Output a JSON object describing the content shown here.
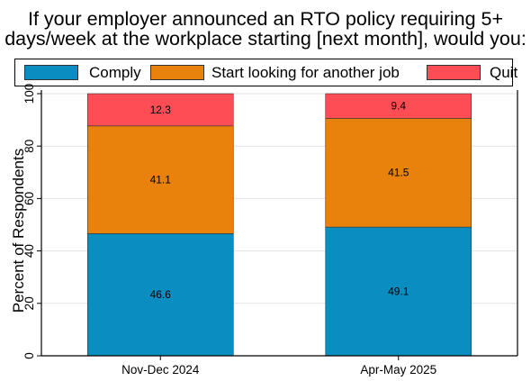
{
  "chart_data": {
    "type": "bar",
    "stacked": true,
    "title": "If your employer announced an RTO policy requiring 5+ days/week at the workplace starting [next month], would you:",
    "title_lines": [
      "If your employer announced an RTO policy requiring 5+",
      "days/week at the workplace starting [next month], would you:"
    ],
    "xlabel": "",
    "ylabel": "Percent of Respondents",
    "ylim": [
      0,
      100
    ],
    "yticks": [
      0,
      20,
      40,
      60,
      80,
      100
    ],
    "ytick_labels": [
      "0",
      "20",
      "40",
      "60",
      "80",
      "100"
    ],
    "grid": true,
    "legend_position": "top",
    "categories": [
      "Nov-Dec 2024",
      "Apr-May 2025"
    ],
    "series": [
      {
        "name": "Comply",
        "color": "#0a8dc0",
        "values": [
          46.6,
          49.1
        ],
        "labels": [
          "46.6",
          "49.1"
        ]
      },
      {
        "name": "Start looking for another job",
        "color": "#e8820c",
        "values": [
          41.1,
          41.5
        ],
        "labels": [
          "41.1",
          "41.5"
        ]
      },
      {
        "name": "Quit",
        "color": "#ff4d55",
        "values": [
          12.3,
          9.4
        ],
        "labels": [
          "12.3",
          "9.4"
        ]
      }
    ]
  }
}
